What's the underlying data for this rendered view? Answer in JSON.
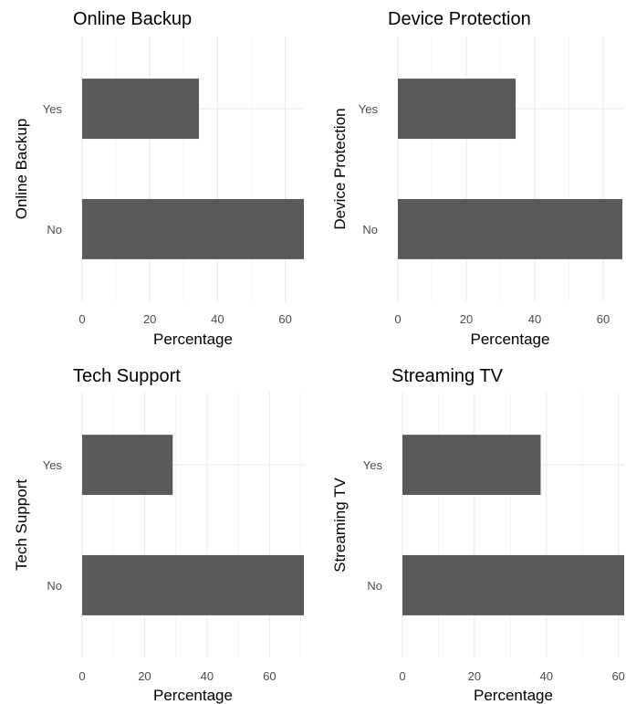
{
  "chart_data": [
    {
      "type": "bar",
      "orientation": "horizontal",
      "title": "Online Backup",
      "ylabel": "Online Backup",
      "xlabel": "Percentage",
      "categories": [
        "No",
        "Yes"
      ],
      "values": [
        65.5,
        34.5
      ],
      "xlim": [
        0,
        65.5
      ],
      "xticks": [
        0,
        20,
        40,
        60
      ],
      "grid": true,
      "bar_color": "#595959"
    },
    {
      "type": "bar",
      "orientation": "horizontal",
      "title": "Device Protection",
      "ylabel": "Device Protection",
      "xlabel": "Percentage",
      "categories": [
        "No",
        "Yes"
      ],
      "values": [
        65.6,
        34.4
      ],
      "xlim": [
        0,
        65.6
      ],
      "xticks": [
        0,
        20,
        40,
        60
      ],
      "grid": true,
      "bar_color": "#595959"
    },
    {
      "type": "bar",
      "orientation": "horizontal",
      "title": "Tech Support",
      "ylabel": "Tech Support",
      "xlabel": "Percentage",
      "categories": [
        "No",
        "Yes"
      ],
      "values": [
        71,
        29
      ],
      "xlim": [
        0,
        71
      ],
      "xticks": [
        0,
        20,
        40,
        60
      ],
      "grid": true,
      "bar_color": "#595959"
    },
    {
      "type": "bar",
      "orientation": "horizontal",
      "title": "Streaming TV",
      "ylabel": "Streaming TV",
      "xlabel": "Percentage",
      "categories": [
        "No",
        "Yes"
      ],
      "values": [
        61.6,
        38.4
      ],
      "xlim": [
        0,
        61.6
      ],
      "xticks": [
        0,
        20,
        40,
        60
      ],
      "grid": true,
      "bar_color": "#595959"
    }
  ]
}
